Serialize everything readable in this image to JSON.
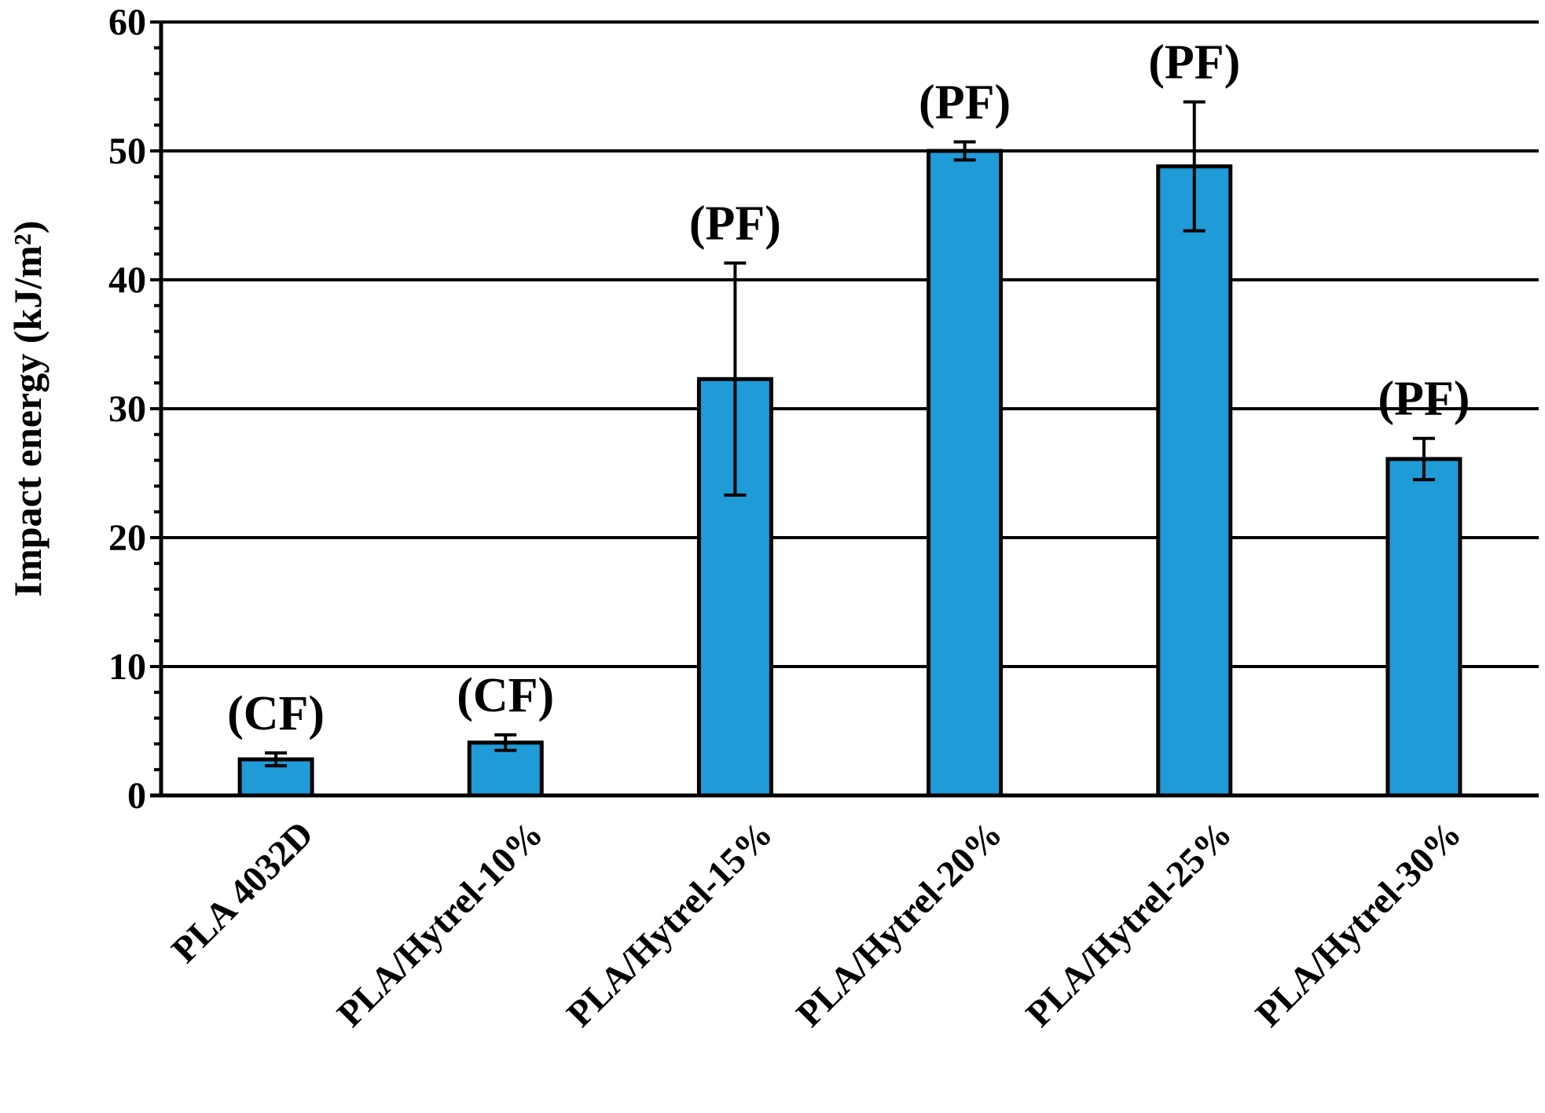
{
  "chart_data": {
    "type": "bar",
    "title": "",
    "xlabel": "",
    "ylabel": "Impact energy (kJ/m²)",
    "ylim": [
      0,
      60
    ],
    "yticks": [
      0,
      10,
      20,
      30,
      40,
      50,
      60
    ],
    "grid": true,
    "categories": [
      "PLA 4032D",
      "PLA/Hytrel-10%",
      "PLA/Hytrel-15%",
      "PLA/Hytrel-20%",
      "PLA/Hytrel-25%",
      "PLA/Hytrel-30%"
    ],
    "series": [
      {
        "name": "Impact energy",
        "values": [
          2.8,
          4.1,
          32.3,
          50.0,
          48.8,
          26.1
        ],
        "error": [
          0.5,
          0.6,
          9.0,
          0.7,
          5.0,
          1.6
        ]
      }
    ],
    "annotations": [
      "(CF)",
      "(CF)",
      "(PF)",
      "(PF)",
      "(PF)",
      "(PF)"
    ],
    "colors": {
      "bar": "#1f9bd7",
      "edge": "#000000",
      "grid": "#000000"
    }
  }
}
